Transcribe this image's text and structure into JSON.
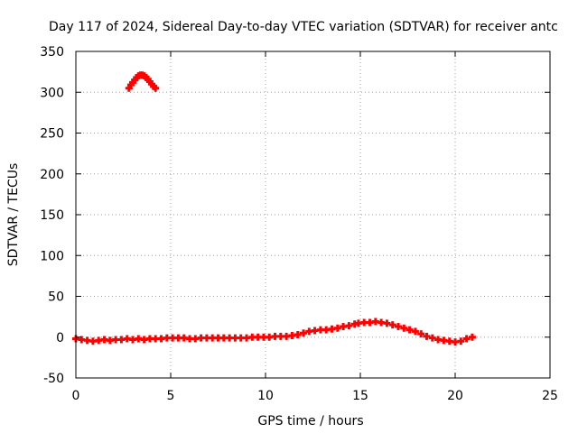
{
  "chart_data": {
    "type": "scatter",
    "title": "Day 117 of 2024, Sidereal Day-to-day VTEC variation (SDTVAR) for receiver antc",
    "xlabel": "GPS time / hours",
    "ylabel": "SDTVAR / TECUs",
    "xlim": [
      0,
      25
    ],
    "ylim": [
      -50,
      350
    ],
    "xticks": [
      0,
      5,
      10,
      15,
      20,
      25
    ],
    "yticks": [
      -50,
      0,
      50,
      100,
      150,
      200,
      250,
      300,
      350
    ],
    "grid": true,
    "legend": "none",
    "marker": "plus",
    "series": [
      {
        "name": "SDTVAR",
        "color": "#ff0000",
        "x": [
          2.8,
          2.9,
          3.0,
          3.1,
          3.2,
          3.3,
          3.4,
          3.5,
          3.6,
          3.7,
          3.8,
          3.9,
          4.0,
          4.1,
          4.2,
          0.0,
          0.3,
          0.6,
          0.9,
          1.2,
          1.5,
          1.8,
          2.1,
          2.4,
          2.7,
          3.0,
          3.3,
          3.6,
          3.9,
          4.2,
          4.5,
          4.8,
          5.1,
          5.4,
          5.7,
          6.0,
          6.3,
          6.6,
          6.9,
          7.2,
          7.5,
          7.8,
          8.1,
          8.4,
          8.7,
          9.0,
          9.3,
          9.6,
          9.9,
          10.2,
          10.5,
          10.8,
          11.1,
          11.4,
          11.7,
          12.0,
          12.3,
          12.6,
          12.9,
          13.2,
          13.5,
          13.8,
          14.1,
          14.4,
          14.7,
          14.9,
          15.2,
          15.5,
          15.8,
          16.1,
          16.4,
          16.7,
          17.0,
          17.3,
          17.6,
          17.9,
          18.2,
          18.5,
          18.8,
          19.1,
          19.4,
          19.7,
          20.0,
          20.3,
          20.6,
          20.9
        ],
        "y": [
          305,
          309,
          312,
          315,
          318,
          320,
          321,
          321,
          320,
          318,
          316,
          313,
          310,
          307,
          305,
          -2,
          -3,
          -4,
          -5,
          -4,
          -3,
          -4,
          -3,
          -3,
          -2,
          -3,
          -2,
          -3,
          -2,
          -2,
          -2,
          -1,
          -1,
          -1,
          -1,
          -2,
          -2,
          -1,
          -1,
          -1,
          -1,
          -1,
          -1,
          -1,
          -1,
          -1,
          0,
          0,
          0,
          0,
          1,
          1,
          1,
          2,
          3,
          5,
          7,
          8,
          9,
          9,
          10,
          11,
          13,
          14,
          16,
          17,
          18,
          18,
          19,
          18,
          17,
          15,
          13,
          11,
          9,
          7,
          4,
          1,
          -1,
          -3,
          -4,
          -5,
          -6,
          -5,
          -2,
          0
        ]
      }
    ]
  }
}
